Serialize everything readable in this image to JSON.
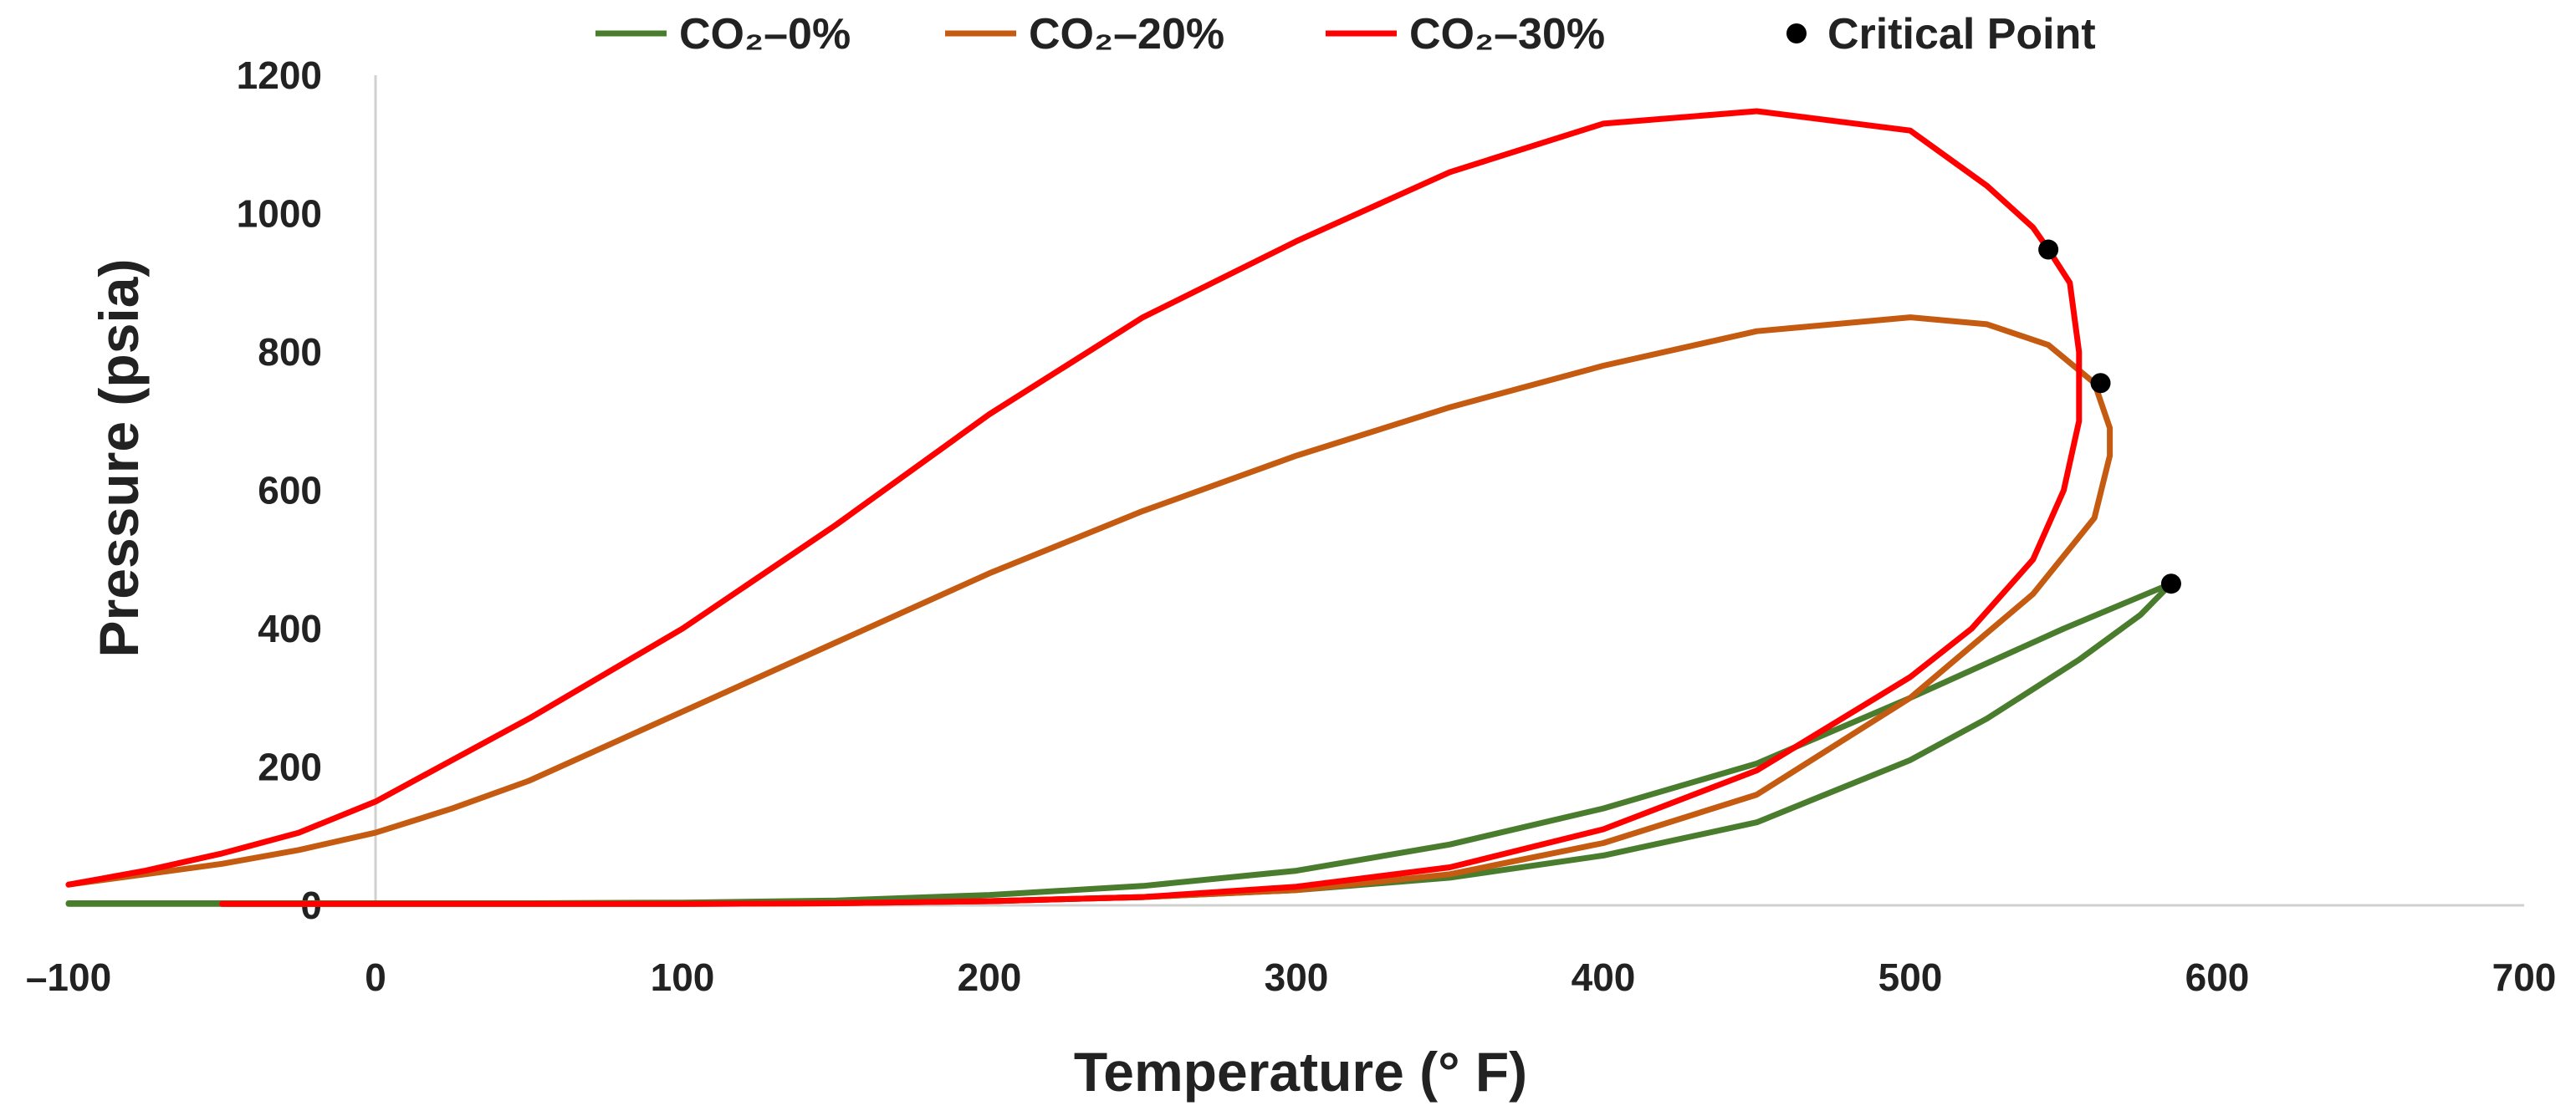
{
  "chart_data": {
    "type": "line",
    "title": "",
    "xlabel": "Temperature (° F)",
    "ylabel": "Pressure (psia)",
    "xlim": [
      -100,
      700
    ],
    "ylim": [
      0,
      1200
    ],
    "xticks": [
      -100,
      0,
      100,
      200,
      300,
      400,
      500,
      600,
      700
    ],
    "yticks": [
      0,
      200,
      400,
      600,
      800,
      1000,
      1200
    ],
    "xtick_labels": [
      "–100",
      "0",
      "100",
      "200",
      "300",
      "400",
      "500",
      "600",
      "700"
    ],
    "ytick_labels": [
      "0",
      "200",
      "400",
      "600",
      "800",
      "1000",
      "1200"
    ],
    "grid": false,
    "legend_position": "top",
    "legend": [
      {
        "label": "CO₂–0%",
        "kind": "line",
        "color": "#4a7c2e"
      },
      {
        "label": "CO₂–20%",
        "kind": "line",
        "color": "#c55a11"
      },
      {
        "label": "CO₂–30%",
        "kind": "line",
        "color": "#ff0000"
      },
      {
        "label": "Critical Point",
        "kind": "marker",
        "color": "#000000"
      }
    ],
    "series": [
      {
        "name": "CO₂–0%",
        "color": "#4a7c2e",
        "x": [
          -100,
          -50,
          0,
          50,
          100,
          150,
          200,
          250,
          300,
          350,
          400,
          450,
          500,
          550,
          585,
          575,
          555,
          525,
          500,
          450,
          400,
          350,
          300,
          250,
          200,
          150,
          100,
          50,
          0,
          -50,
          -100
        ],
        "y": [
          3,
          3,
          3,
          3,
          4,
          7,
          15,
          28,
          50,
          88,
          140,
          205,
          300,
          400,
          465,
          420,
          355,
          270,
          210,
          120,
          72,
          40,
          22,
          12,
          6,
          3,
          2,
          2,
          2,
          2,
          2
        ]
      },
      {
        "name": "CO₂–20%",
        "color": "#c55a11",
        "x": [
          -100,
          -75,
          -50,
          -25,
          0,
          25,
          50,
          100,
          150,
          200,
          250,
          300,
          350,
          400,
          450,
          500,
          525,
          545,
          560,
          565,
          565,
          560,
          540,
          500,
          450,
          400,
          350,
          300,
          250,
          200,
          150,
          100,
          50,
          0,
          -50
        ],
        "y": [
          30,
          45,
          60,
          80,
          105,
          140,
          180,
          280,
          380,
          480,
          570,
          650,
          720,
          780,
          830,
          850,
          840,
          810,
          755,
          690,
          650,
          560,
          450,
          300,
          160,
          90,
          45,
          22,
          12,
          6,
          3,
          2,
          2,
          2,
          2
        ]
      },
      {
        "name": "CO₂–30%",
        "color": "#ff0000",
        "x": [
          -100,
          -75,
          -50,
          -25,
          0,
          25,
          50,
          100,
          150,
          200,
          250,
          300,
          350,
          400,
          450,
          500,
          525,
          540,
          545,
          552,
          555,
          555,
          550,
          540,
          520,
          500,
          450,
          400,
          350,
          300,
          250,
          200,
          150,
          100,
          50,
          0,
          -50
        ],
        "y": [
          30,
          50,
          75,
          105,
          150,
          210,
          270,
          400,
          550,
          710,
          850,
          960,
          1060,
          1130,
          1148,
          1120,
          1040,
          980,
          948,
          900,
          800,
          700,
          600,
          500,
          400,
          330,
          195,
          110,
          55,
          27,
          12,
          6,
          3,
          2,
          2,
          2,
          2
        ]
      }
    ],
    "critical_points": [
      {
        "x": 545,
        "y": 948
      },
      {
        "x": 562,
        "y": 755
      },
      {
        "x": 585,
        "y": 465
      }
    ]
  }
}
